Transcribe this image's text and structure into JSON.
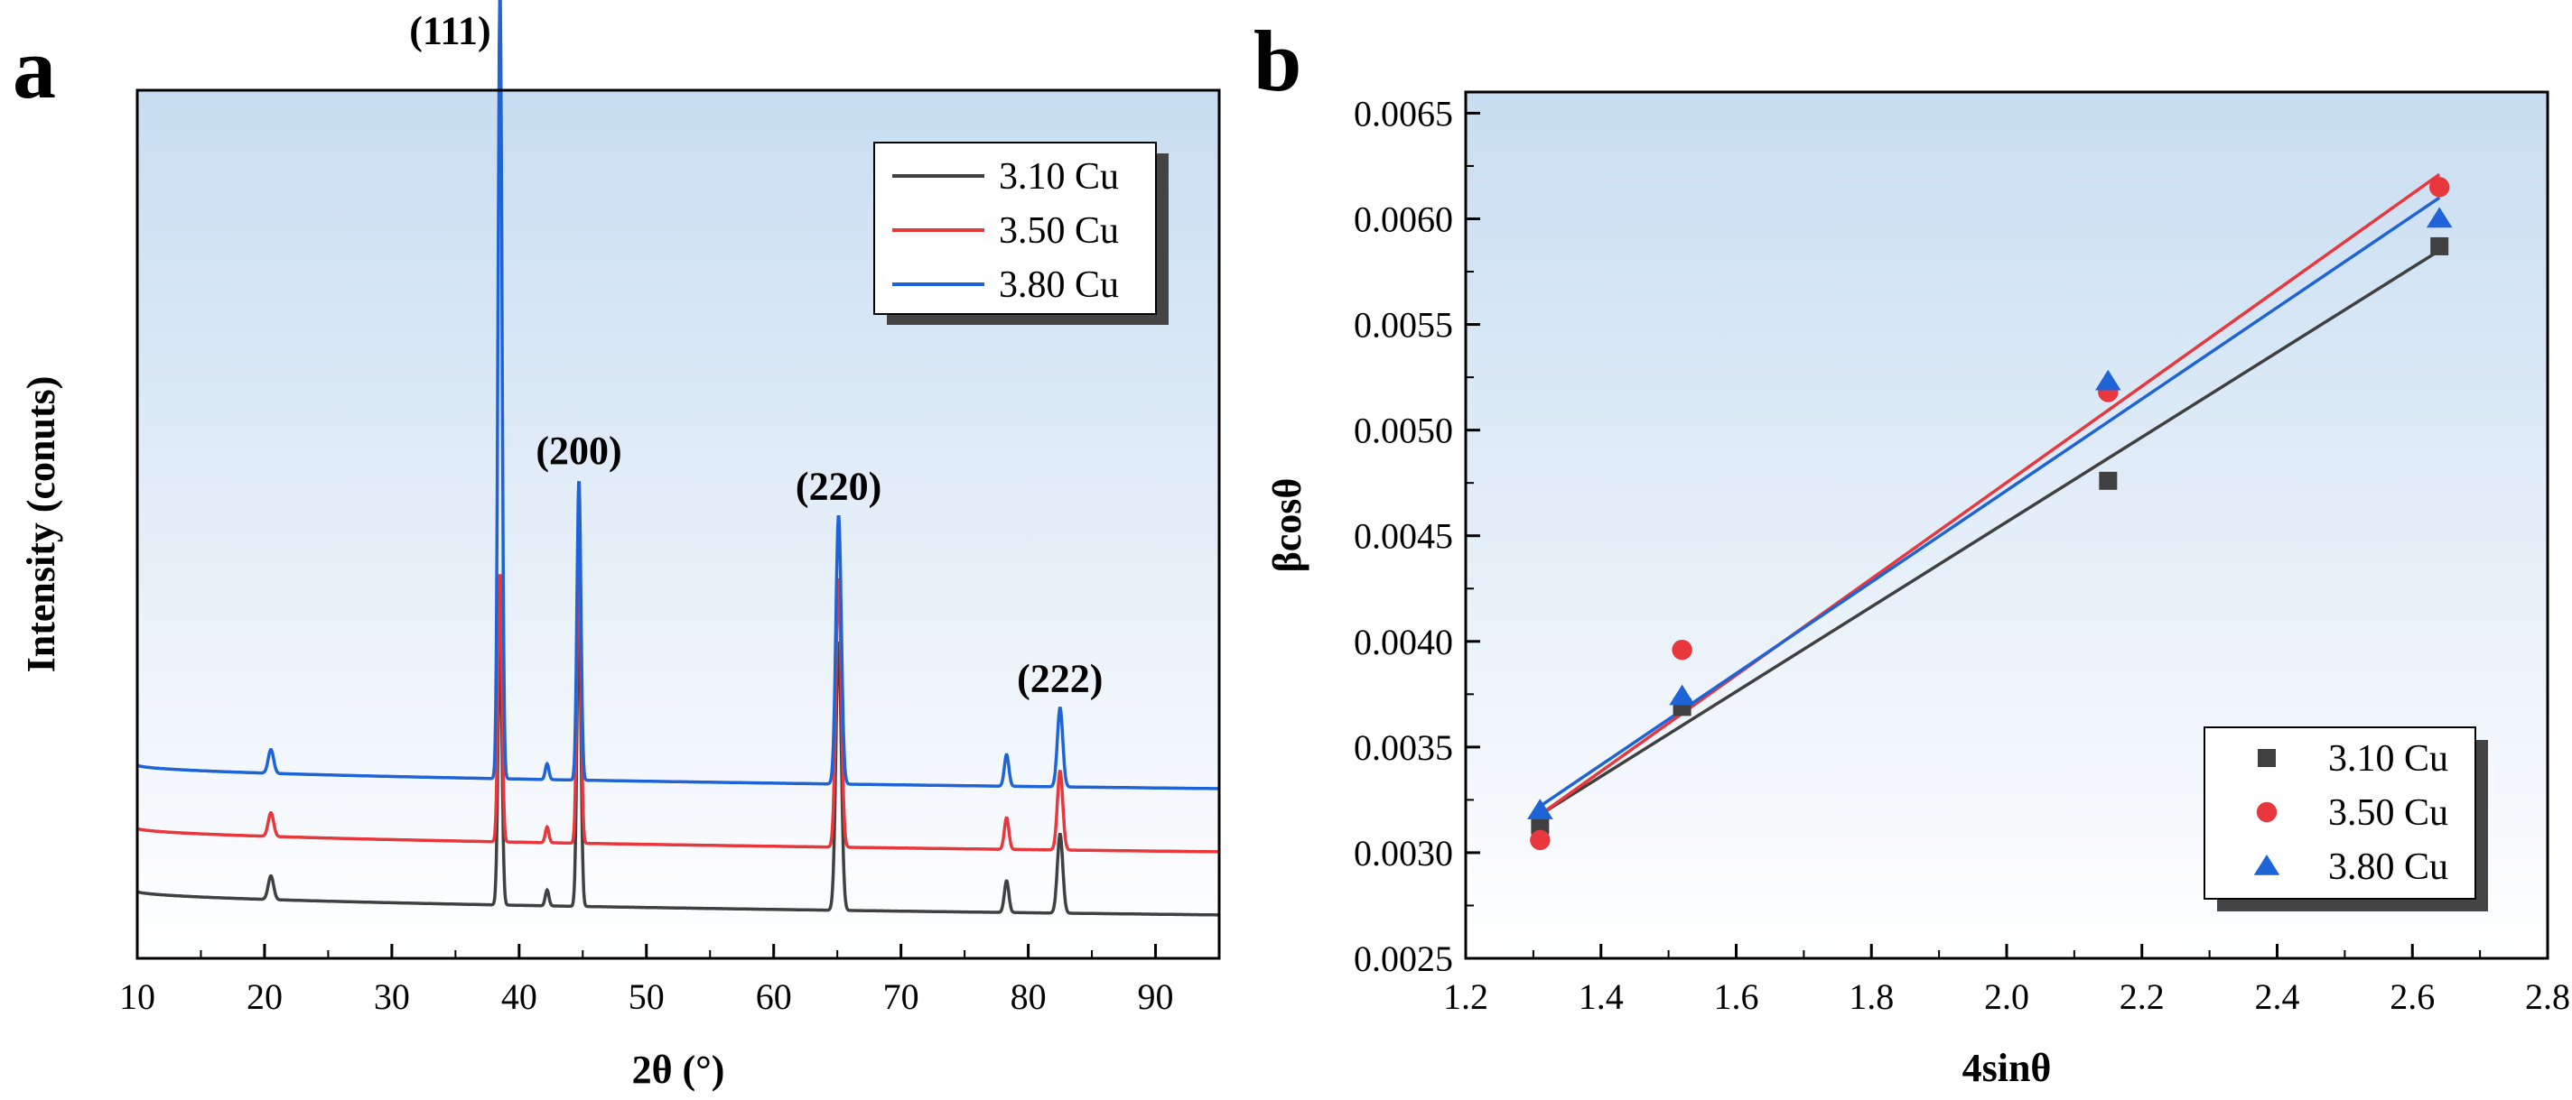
{
  "chart_data": [
    {
      "panel": "a",
      "type": "line",
      "xlabel": "2θ (°)",
      "ylabel": "Intensity (conuts)",
      "xlim": [
        10,
        95
      ],
      "xticks": [
        10,
        20,
        30,
        40,
        50,
        60,
        70,
        80,
        90
      ],
      "xtick_labels": [
        "10",
        "20",
        "30",
        "40",
        "50",
        "60",
        "70",
        "80",
        "90"
      ],
      "legend": {
        "position": "top-right",
        "entries": [
          "3.10 Cu",
          "3.50 Cu",
          "3.80 Cu"
        ]
      },
      "peak_labels": [
        {
          "text": "(111)",
          "x": 38.5
        },
        {
          "text": "(200)",
          "x": 44.7
        },
        {
          "text": "(220)",
          "x": 65.1
        },
        {
          "text": "(222)",
          "x": 82.5
        }
      ],
      "peaks": [
        {
          "x": 20.5,
          "height": 3,
          "width": 0.3
        },
        {
          "x": 38.5,
          "height": 100,
          "width": 0.22
        },
        {
          "x": 42.2,
          "height": 2,
          "width": 0.2
        },
        {
          "x": 44.7,
          "height": 38,
          "width": 0.22
        },
        {
          "x": 65.1,
          "height": 34,
          "width": 0.3
        },
        {
          "x": 78.3,
          "height": 4,
          "width": 0.25
        },
        {
          "x": 82.5,
          "height": 10,
          "width": 0.3
        }
      ],
      "series": [
        {
          "name": "3.10 Cu",
          "color": "#404040",
          "baseline_start": 3.5,
          "baseline_end": 0.5,
          "peak_scale": 0.34
        },
        {
          "name": "3.50 Cu",
          "color": "#e8383d",
          "baseline_start": 11.5,
          "baseline_end": 8.5,
          "peak_scale": 0.34
        },
        {
          "name": "3.80 Cu",
          "color": "#1f64d6",
          "baseline_start": 19.5,
          "baseline_end": 16.5,
          "peak_scale": 1.0
        }
      ],
      "ylim": [
        -5,
        105
      ]
    },
    {
      "panel": "b",
      "type": "scatter",
      "xlabel": "4sinθ",
      "ylabel": "βcosθ",
      "xlim": [
        1.2,
        2.8
      ],
      "ylim": [
        0.0025,
        0.0066
      ],
      "xticks": [
        1.2,
        1.4,
        1.6,
        1.8,
        2.0,
        2.2,
        2.4,
        2.6,
        2.8
      ],
      "xtick_labels": [
        "1.2",
        "1.4",
        "1.6",
        "1.8",
        "2.0",
        "2.2",
        "2.4",
        "2.6",
        "2.8"
      ],
      "yticks": [
        0.0025,
        0.003,
        0.0035,
        0.004,
        0.0045,
        0.005,
        0.0055,
        0.006,
        0.0065
      ],
      "ytick_labels": [
        "0.0025",
        "0.0030",
        "0.0035",
        "0.0040",
        "0.0045",
        "0.0050",
        "0.0055",
        "0.0060",
        "0.0065"
      ],
      "legend": {
        "position": "bottom-right",
        "entries": [
          "3.10 Cu",
          "3.50 Cu",
          "3.80 Cu"
        ]
      },
      "series": [
        {
          "name": "3.10 Cu",
          "color": "#404040",
          "marker": "square",
          "x": [
            1.31,
            1.52,
            2.15,
            2.64
          ],
          "y": [
            0.00313,
            0.00369,
            0.00476,
            0.00587
          ],
          "fit": {
            "x": [
              1.31,
              2.64
            ],
            "y": [
              0.00318,
              0.00585
            ]
          }
        },
        {
          "name": "3.50 Cu",
          "color": "#e8383d",
          "marker": "circle",
          "x": [
            1.31,
            1.52,
            2.15,
            2.64
          ],
          "y": [
            0.00306,
            0.00396,
            0.00518,
            0.00615
          ],
          "fit": {
            "x": [
              1.31,
              2.64
            ],
            "y": [
              0.00318,
              0.00621
            ]
          }
        },
        {
          "name": "3.80 Cu",
          "color": "#1f64d6",
          "marker": "triangle",
          "x": [
            1.31,
            1.52,
            2.15,
            2.64
          ],
          "y": [
            0.0032,
            0.00374,
            0.00523,
            0.006
          ],
          "fit": {
            "x": [
              1.31,
              2.64
            ],
            "y": [
              0.00322,
              0.0061
            ]
          }
        }
      ]
    }
  ]
}
